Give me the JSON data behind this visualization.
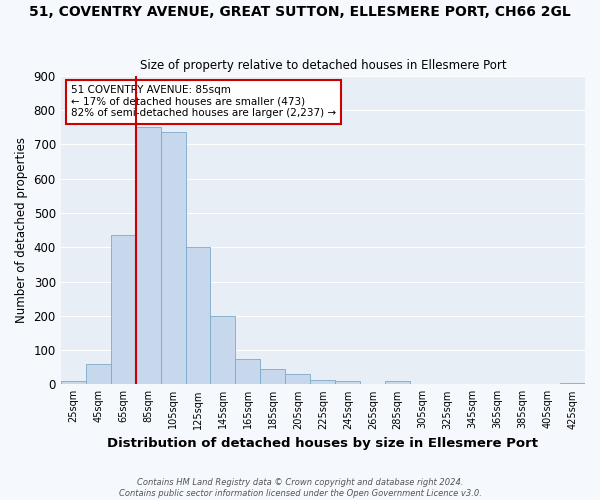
{
  "title": "51, COVENTRY AVENUE, GREAT SUTTON, ELLESMERE PORT, CH66 2GL",
  "subtitle": "Size of property relative to detached houses in Ellesmere Port",
  "xlabel": "Distribution of detached houses by size in Ellesmere Port",
  "ylabel": "Number of detached properties",
  "bar_color": "#c8d8ec",
  "bar_edge_color": "#7aaac8",
  "background_color": "#f5f8fc",
  "plot_bg_color": "#e8eef5",
  "grid_color": "#ffffff",
  "categories": [
    "25sqm",
    "45sqm",
    "65sqm",
    "85sqm",
    "105sqm",
    "125sqm",
    "145sqm",
    "165sqm",
    "185sqm",
    "205sqm",
    "225sqm",
    "245sqm",
    "265sqm",
    "285sqm",
    "305sqm",
    "325sqm",
    "345sqm",
    "365sqm",
    "385sqm",
    "405sqm",
    "425sqm"
  ],
  "values": [
    10,
    58,
    435,
    750,
    735,
    400,
    198,
    75,
    45,
    30,
    12,
    10,
    0,
    10,
    0,
    0,
    0,
    0,
    0,
    0,
    5
  ],
  "vline_x": 3.0,
  "vline_color": "#cc0000",
  "annotation_title": "51 COVENTRY AVENUE: 85sqm",
  "annotation_line1": "← 17% of detached houses are smaller (473)",
  "annotation_line2": "82% of semi-detached houses are larger (2,237) →",
  "annotation_box_color": "#ffffff",
  "annotation_box_edge": "#cc0000",
  "ylim": [
    0,
    900
  ],
  "yticks": [
    0,
    100,
    200,
    300,
    400,
    500,
    600,
    700,
    800,
    900
  ],
  "footer1": "Contains HM Land Registry data © Crown copyright and database right 2024.",
  "footer2": "Contains public sector information licensed under the Open Government Licence v3.0."
}
